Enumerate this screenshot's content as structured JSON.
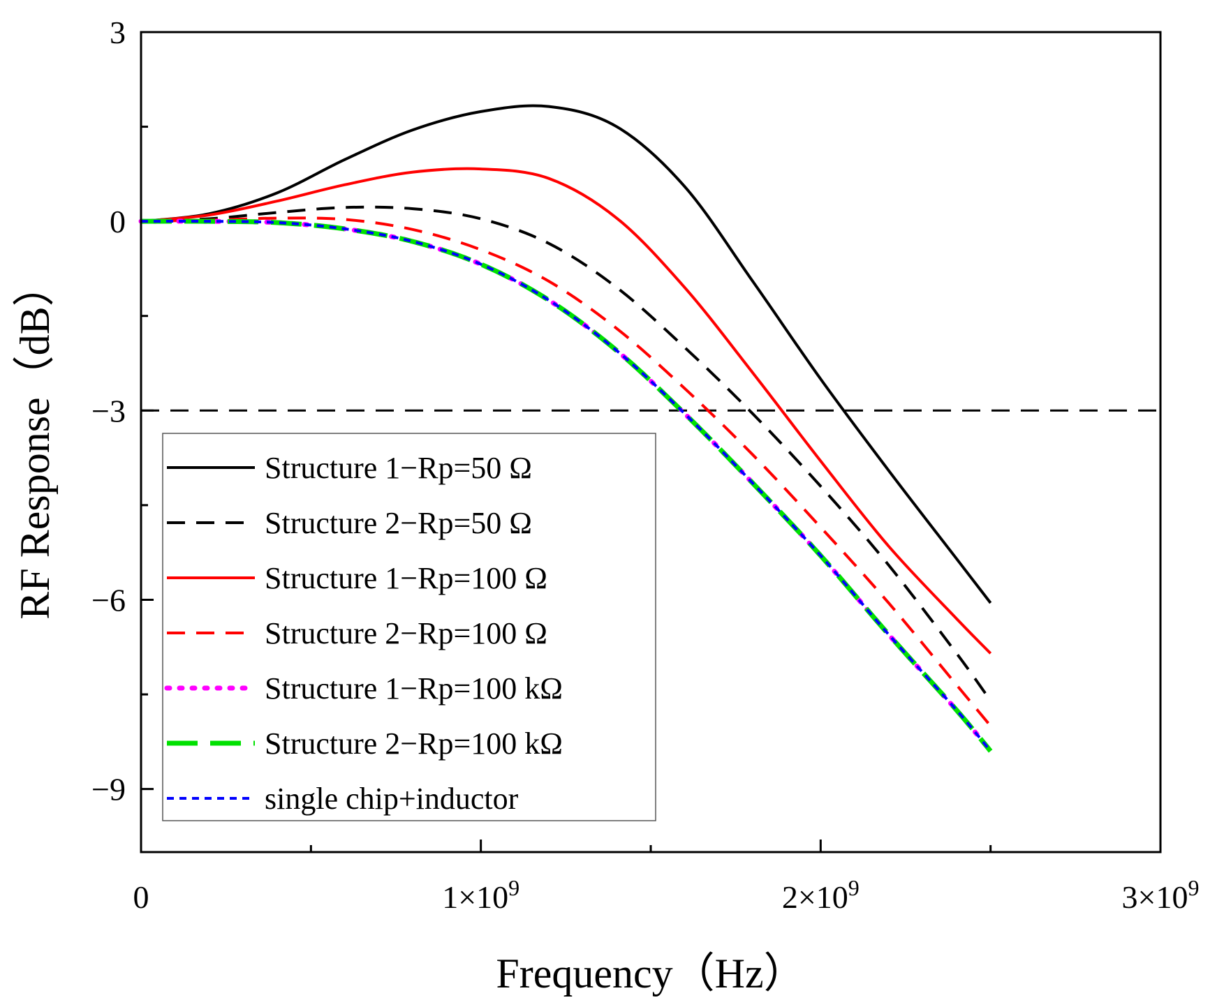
{
  "chart_data": {
    "type": "line",
    "title": "",
    "xlabel": "Frequency（Hz）",
    "ylabel": "RF Response（dB）",
    "xlim": [
      0,
      3000000000
    ],
    "ylim": [
      -10,
      3
    ],
    "x_ticks": [
      {
        "value": 0,
        "label": "0",
        "sup": ""
      },
      {
        "value": 1000000000,
        "label": "1×10",
        "sup": "9"
      },
      {
        "value": 2000000000,
        "label": "2×10",
        "sup": "9"
      },
      {
        "value": 3000000000,
        "label": "3×10",
        "sup": "9"
      }
    ],
    "y_ticks": [
      {
        "value": 3,
        "label": "3"
      },
      {
        "value": 0,
        "label": "0"
      },
      {
        "value": -3,
        "label": "−3"
      },
      {
        "value": -6,
        "label": "−6"
      },
      {
        "value": -9,
        "label": "−9"
      }
    ],
    "x_minor_ticks": [
      500000000,
      1500000000,
      2500000000
    ],
    "y_minor_ticks": [
      1.5,
      -1.5,
      -4.5,
      -7.5
    ],
    "reference_line": {
      "y": -3,
      "color": "#000000",
      "style": "dashed"
    },
    "legend_position": "bottom-left",
    "x": [
      0,
      200000000,
      400000000,
      600000000,
      800000000,
      1000000000,
      1200000000,
      1400000000,
      1600000000,
      1800000000,
      2000000000,
      2200000000,
      2400000000,
      2500000000
    ],
    "series": [
      {
        "name": "Structure 1−Rp=50 Ω",
        "color": "#000000",
        "style": "solid",
        "values": [
          0,
          0.12,
          0.45,
          0.98,
          1.45,
          1.74,
          1.82,
          1.5,
          0.55,
          -0.95,
          -2.5,
          -3.95,
          -5.35,
          -6.05
        ]
      },
      {
        "name": "Structure 2−Rp=50 Ω",
        "color": "#000000",
        "style": "dashed",
        "values": [
          0,
          0.04,
          0.14,
          0.22,
          0.2,
          0.04,
          -0.35,
          -1.05,
          -2.0,
          -3.05,
          -4.2,
          -5.45,
          -6.85,
          -7.6
        ]
      },
      {
        "name": "Structure 1−Rp=100 Ω",
        "color": "#ff0000",
        "style": "solid",
        "values": [
          0,
          0.1,
          0.32,
          0.58,
          0.78,
          0.83,
          0.68,
          0.05,
          -1.05,
          -2.4,
          -3.8,
          -5.15,
          -6.3,
          -6.85
        ]
      },
      {
        "name": "Structure 2−Rp=100 Ω",
        "color": "#ff0000",
        "style": "dashed",
        "values": [
          0,
          0.02,
          0.05,
          0.03,
          -0.13,
          -0.45,
          -0.95,
          -1.7,
          -2.65,
          -3.7,
          -4.85,
          -6.05,
          -7.35,
          -8.0
        ]
      },
      {
        "name": "Structure 1−Rp=100 kΩ",
        "color": "#ff00ff",
        "style": "dotted",
        "values": [
          0,
          0.0,
          -0.02,
          -0.12,
          -0.32,
          -0.68,
          -1.25,
          -2.05,
          -3.05,
          -4.15,
          -5.3,
          -6.55,
          -7.75,
          -8.4
        ]
      },
      {
        "name": "Structure 2−Rp=100 kΩ",
        "color": "#00e000",
        "style": "longdash",
        "values": [
          0,
          0.0,
          -0.02,
          -0.12,
          -0.32,
          -0.68,
          -1.25,
          -2.05,
          -3.05,
          -4.15,
          -5.3,
          -6.55,
          -7.75,
          -8.4
        ]
      },
      {
        "name": "single chip+inductor",
        "color": "#0000ff",
        "style": "shortdash",
        "values": [
          0,
          0.0,
          -0.02,
          -0.12,
          -0.32,
          -0.68,
          -1.25,
          -2.05,
          -3.05,
          -4.15,
          -5.3,
          -6.55,
          -7.75,
          -8.4
        ]
      }
    ]
  }
}
